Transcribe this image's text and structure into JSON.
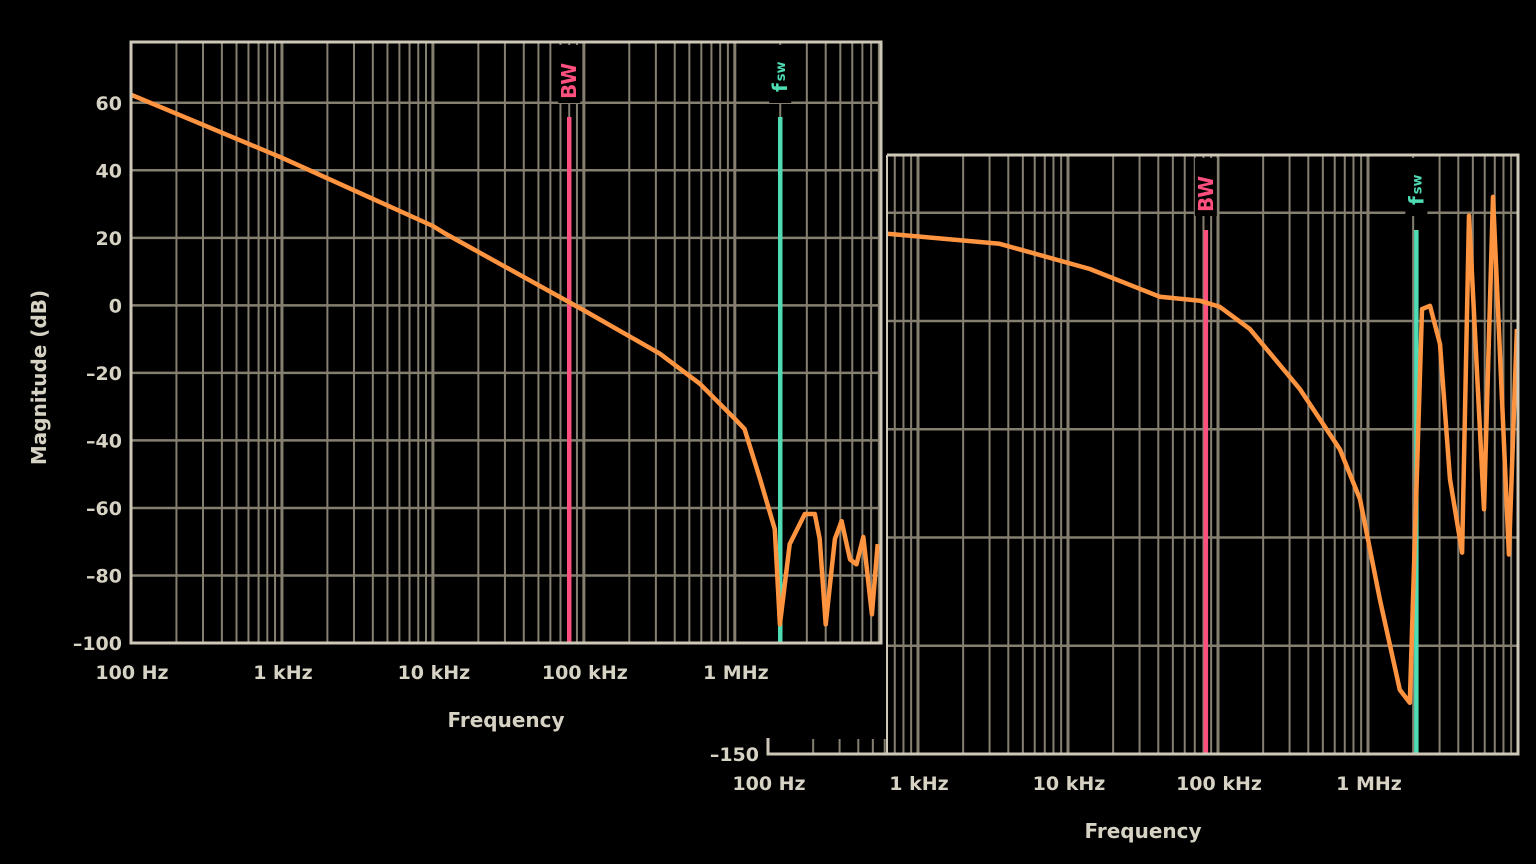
{
  "colors": {
    "background": "#000000",
    "grid": "#857f70",
    "frame": "#cdc8b8",
    "curve": "#ff9440",
    "bw_marker": "#ff4f7e",
    "fsw_marker": "#4fdcb4",
    "text": "#d6d2c4"
  },
  "chart_data": [
    {
      "type": "line",
      "xscale": "log",
      "xlabel": "Frequency",
      "ylabel": "Magnitude (dB)",
      "xlim": [
        100,
        9300000
      ],
      "ylim": [
        -100,
        78
      ],
      "grid": true,
      "xticks": [
        {
          "value": 100,
          "label": "100 Hz"
        },
        {
          "value": 1000,
          "label": "1 kHz"
        },
        {
          "value": 10000,
          "label": "10 kHz"
        },
        {
          "value": 100000,
          "label": "100 kHz"
        },
        {
          "value": 1000000,
          "label": "1 MHz"
        }
      ],
      "yticks": [
        {
          "value": 60,
          "label": "60"
        },
        {
          "value": 40,
          "label": "40"
        },
        {
          "value": 20,
          "label": "20"
        },
        {
          "value": 0,
          "label": "0"
        },
        {
          "value": -20,
          "label": "–20"
        },
        {
          "value": -40,
          "label": "–40"
        },
        {
          "value": -60,
          "label": "–60"
        },
        {
          "value": -80,
          "label": "–80"
        },
        {
          "value": -100,
          "label": "–100"
        }
      ],
      "markers": [
        {
          "label": "BW",
          "sub": "",
          "x": 80000,
          "color": "bw"
        },
        {
          "label": "f",
          "sub": "sw",
          "x": 2000000,
          "color": "fsw"
        }
      ],
      "series": [
        {
          "x": [
            100,
            1000,
            10000,
            12000,
            100000,
            318000,
            586000,
            1000000,
            1160000,
            1470000,
            1840000,
            1990000,
            2310000,
            2910000,
            3390000,
            3650000,
            4000000,
            4600000,
            5100000,
            5800000,
            6400000,
            7100000,
            8100000,
            8850000
          ],
          "y": [
            62.4,
            43.7,
            23.5,
            21.3,
            -1.5,
            -14.3,
            -23.2,
            -33.6,
            -36.6,
            -51.5,
            -66.3,
            -94.5,
            -70.7,
            -61.8,
            -61.8,
            -69.2,
            -94.5,
            -69.2,
            -63.9,
            -75.2,
            -76.7,
            -68.6,
            -91.5,
            -70.7
          ]
        }
      ]
    },
    {
      "type": "line",
      "xscale": "log",
      "xlabel": "Frequency",
      "ylabel": "",
      "xlim": [
        100,
        10000000
      ],
      "ylim": [
        -150,
        16
      ],
      "grid": true,
      "xticks": [
        {
          "value": 100,
          "label": "100 Hz"
        },
        {
          "value": 1000,
          "label": "1 kHz"
        },
        {
          "value": 10000,
          "label": "10 kHz"
        },
        {
          "value": 100000,
          "label": "100 kHz"
        },
        {
          "value": 1000000,
          "label": "1 MHz"
        }
      ],
      "yticks": [
        {
          "value": -150,
          "label": "–150"
        }
      ],
      "ygrid": [
        0,
        -30,
        -60,
        -90,
        -120
      ],
      "markers": [
        {
          "label": "BW",
          "sub": "",
          "x": 83000,
          "color": "bw"
        },
        {
          "label": "f",
          "sub": "sw",
          "x": 2100000,
          "color": "fsw"
        }
      ],
      "series": [
        {
          "x": [
            621,
            3500,
            14000,
            41000,
            76000,
            103000,
            163000,
            352000,
            650000,
            885000,
            1200000,
            1630000,
            1900000,
            2290000,
            2590000,
            3020000,
            3520000,
            4240000,
            4710000,
            5930000,
            6810000,
            8700000,
            9840000
          ],
          "y": [
            -5.8,
            -8.6,
            -15.6,
            -23.3,
            -24.4,
            -26.1,
            -32.2,
            -48.9,
            -65.6,
            -79.4,
            -107.2,
            -132.2,
            -135.8,
            -26.7,
            -25.8,
            -36.4,
            -73.9,
            -94.2,
            -0.8,
            -82.2,
            4.4,
            -94.7,
            -32.2
          ]
        }
      ]
    }
  ]
}
